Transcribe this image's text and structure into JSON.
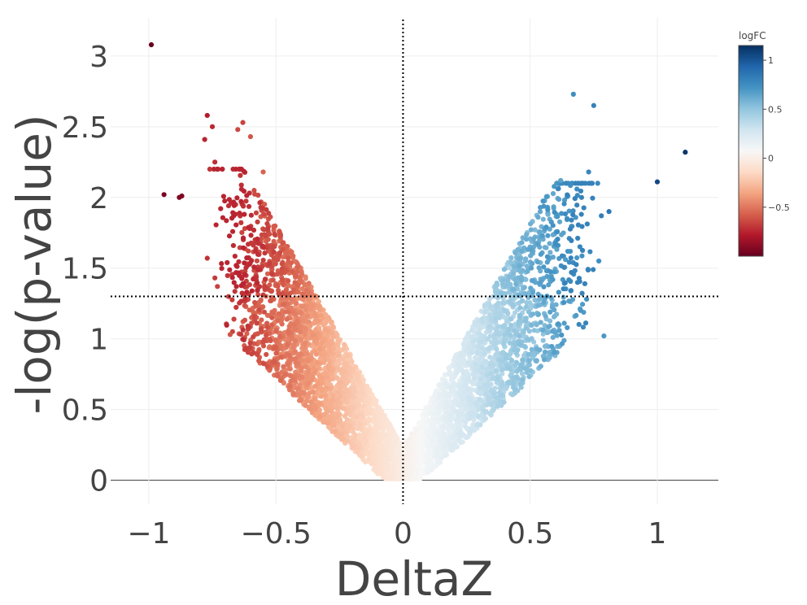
{
  "chart_data": {
    "type": "scatter",
    "title": "",
    "xlabel": "DeltaZ",
    "ylabel": "-log(p-value)",
    "xlim": [
      -1.15,
      1.24
    ],
    "ylim": [
      -0.17,
      3.27
    ],
    "x_ticks": [
      -1,
      -0.5,
      0,
      0.5,
      1
    ],
    "x_tick_labels": [
      "−1",
      "−0.5",
      "0",
      "0.5",
      "1"
    ],
    "y_ticks": [
      0,
      0.5,
      1,
      1.5,
      2,
      2.5,
      3
    ],
    "y_tick_labels": [
      "0",
      "0.5",
      "1",
      "1.5",
      "2",
      "2.5",
      "3"
    ],
    "grid": true,
    "threshold_lines": {
      "vertical_x": 0,
      "horizontal_y": 1.3,
      "style": "dotted"
    },
    "colorbar": {
      "title": "logFC",
      "range": [
        -1,
        1.15
      ],
      "ticks": [
        1,
        0.5,
        0,
        -0.5
      ],
      "tick_labels": [
        "1",
        "0.5",
        "0",
        "−0.5"
      ],
      "colorscale": [
        "#67001f",
        "#b2182b",
        "#d6604d",
        "#f4a582",
        "#fddbc7",
        "#f7f7f7",
        "#d1e5f0",
        "#92c5de",
        "#4393c3",
        "#2166ac",
        "#053061"
      ],
      "placement": "top-right"
    },
    "highlighted_points": [
      {
        "x": -0.99,
        "y": 3.08,
        "c": -1.0
      },
      {
        "x": -0.94,
        "y": 2.02,
        "c": -0.95
      },
      {
        "x": -0.88,
        "y": 2.0,
        "c": -0.93
      },
      {
        "x": -0.87,
        "y": 2.01,
        "c": -0.93
      },
      {
        "x": -0.77,
        "y": 2.58,
        "c": -0.78
      },
      {
        "x": -0.78,
        "y": 2.41,
        "c": -0.75
      },
      {
        "x": -0.75,
        "y": 2.5,
        "c": -0.74
      },
      {
        "x": -0.74,
        "y": 2.25,
        "c": -0.72
      },
      {
        "x": -0.76,
        "y": 2.2,
        "c": -0.7
      },
      {
        "x": -0.77,
        "y": 1.57,
        "c": -0.7
      },
      {
        "x": -0.74,
        "y": 1.43,
        "c": -0.68
      },
      {
        "x": -0.73,
        "y": 1.37,
        "c": -0.66
      },
      {
        "x": -0.68,
        "y": 1.03,
        "c": -0.6
      },
      {
        "x": -0.63,
        "y": 2.53,
        "c": -0.66
      },
      {
        "x": -0.65,
        "y": 2.48,
        "c": -0.64
      },
      {
        "x": -0.6,
        "y": 2.43,
        "c": -0.6
      },
      {
        "x": -0.55,
        "y": 2.18,
        "c": -0.56
      },
      {
        "x": 0.67,
        "y": 2.73,
        "c": 0.75
      },
      {
        "x": 0.75,
        "y": 2.65,
        "c": 0.8
      },
      {
        "x": 1.0,
        "y": 2.11,
        "c": 1.05
      },
      {
        "x": 1.11,
        "y": 2.32,
        "c": 1.12
      },
      {
        "x": 0.73,
        "y": 2.18,
        "c": 0.78
      },
      {
        "x": 0.78,
        "y": 1.87,
        "c": 0.82
      },
      {
        "x": 0.81,
        "y": 1.9,
        "c": 0.85
      },
      {
        "x": 0.79,
        "y": 1.02,
        "c": 0.7
      },
      {
        "x": 0.77,
        "y": 1.55,
        "c": 0.74
      },
      {
        "x": 0.62,
        "y": 2.12,
        "c": 0.65
      },
      {
        "x": 0.57,
        "y": 1.88,
        "c": 0.6
      },
      {
        "x": 0.42,
        "y": 1.5,
        "c": 0.4
      }
    ],
    "cloud_groups": [
      {
        "name": "",
        "side": "negative",
        "x_range": [
          -0.75,
          0
        ],
        "y_range": [
          0,
          2.2
        ],
        "approx_count": 2600,
        "c_range": [
          -0.75,
          -0.02
        ]
      },
      {
        "name": "",
        "side": "positive",
        "x_range": [
          0,
          0.77
        ],
        "y_range": [
          0,
          2.1
        ],
        "approx_count": 2200,
        "c_range": [
          0.02,
          0.8
        ]
      }
    ]
  }
}
